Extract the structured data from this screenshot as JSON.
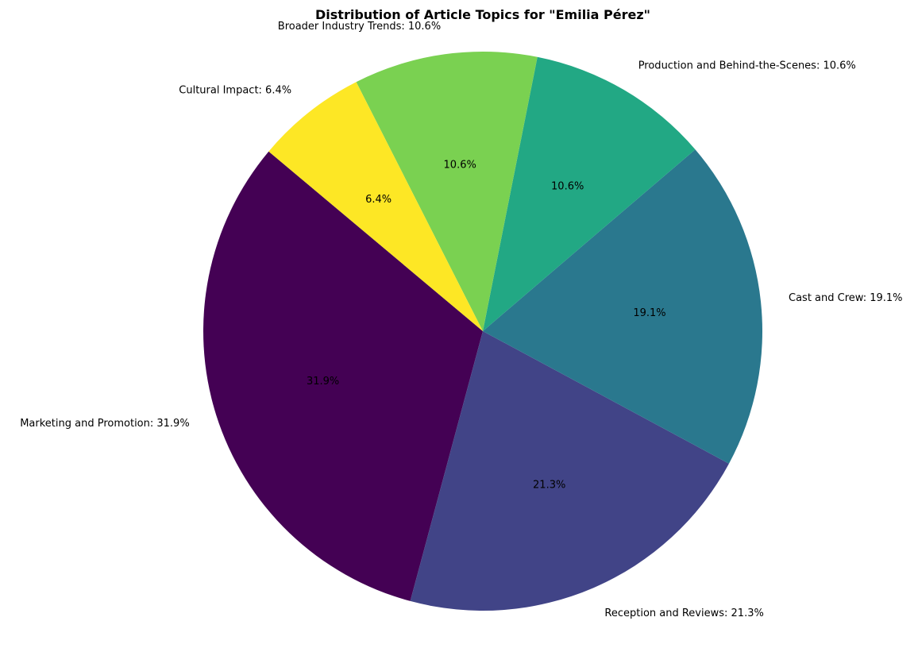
{
  "chart_data": {
    "type": "pie",
    "title": "Distribution of Article Topics for \"Emilia Pérez\"",
    "start_angle_deg": 140,
    "direction": "counterclockwise",
    "legend": "none",
    "slices": [
      {
        "name": "Marketing and Promotion",
        "value": 31.9,
        "color": "#440154",
        "label": "Marketing and Promotion: 31.9%",
        "pct_label": "31.9%"
      },
      {
        "name": "Reception and Reviews",
        "value": 21.3,
        "color": "#414487",
        "label": "Reception and Reviews: 21.3%",
        "pct_label": "21.3%"
      },
      {
        "name": "Cast and Crew",
        "value": 19.1,
        "color": "#2a788e",
        "label": "Cast and Crew: 19.1%",
        "pct_label": "19.1%"
      },
      {
        "name": "Production and Behind-the-Scenes",
        "value": 10.6,
        "color": "#22a884",
        "label": "Production and Behind-the-Scenes: 10.6%",
        "pct_label": "10.6%"
      },
      {
        "name": "Broader Industry Trends",
        "value": 10.6,
        "color": "#7ad151",
        "label": "Broader Industry Trends: 10.6%",
        "pct_label": "10.6%"
      },
      {
        "name": "Cultural Impact",
        "value": 6.4,
        "color": "#fde725",
        "label": "Cultural Impact: 6.4%",
        "pct_label": "6.4%"
      }
    ]
  }
}
